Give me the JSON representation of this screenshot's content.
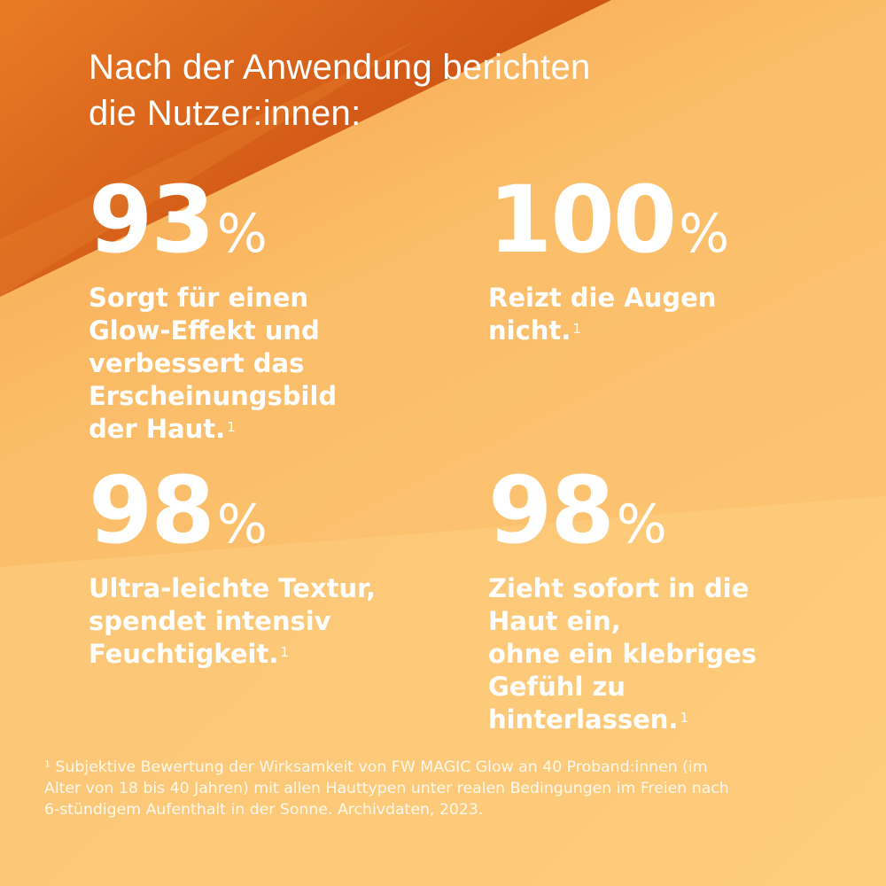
{
  "colors": {
    "bg_light": "#fcc876",
    "bg_mid": "#f8b057",
    "bg_dark": "#cd5216",
    "text": "#ffffff"
  },
  "headline": {
    "lines": [
      "Nach der Anwendung berichten",
      "die Nutzer:innen:"
    ]
  },
  "stats": [
    {
      "value": "93",
      "unit": "%",
      "lines": [
        "Sorgt für einen",
        "Glow-Effekt und",
        "verbessert das",
        "Erscheinungsbild",
        "der Haut."
      ],
      "note": "1"
    },
    {
      "value": "100",
      "unit": "%",
      "lines": [
        "Reizt die Augen",
        "nicht."
      ],
      "note": "1"
    },
    {
      "value": "98",
      "unit": "%",
      "lines": [
        "Ultra-leichte Textur,",
        "spendet intensiv",
        "Feuchtigkeit."
      ],
      "note": "1"
    },
    {
      "value": "98",
      "unit": "%",
      "lines": [
        "Zieht sofort in die",
        "Haut ein,",
        "ohne ein klebriges",
        "Gefühl zu",
        "hinterlassen."
      ],
      "note": "1"
    }
  ],
  "footnote": {
    "lines": [
      "¹ Subjektive Bewertung der Wirksamkeit von FW MAGIC Glow an 40 Proband:innen (im",
      "Alter von 18 bis 40 Jahren) mit allen Hauttypen unter realen Bedingungen im Freien nach",
      "6-stündigem Aufenthalt in der Sonne. Archivdaten, 2023."
    ]
  }
}
